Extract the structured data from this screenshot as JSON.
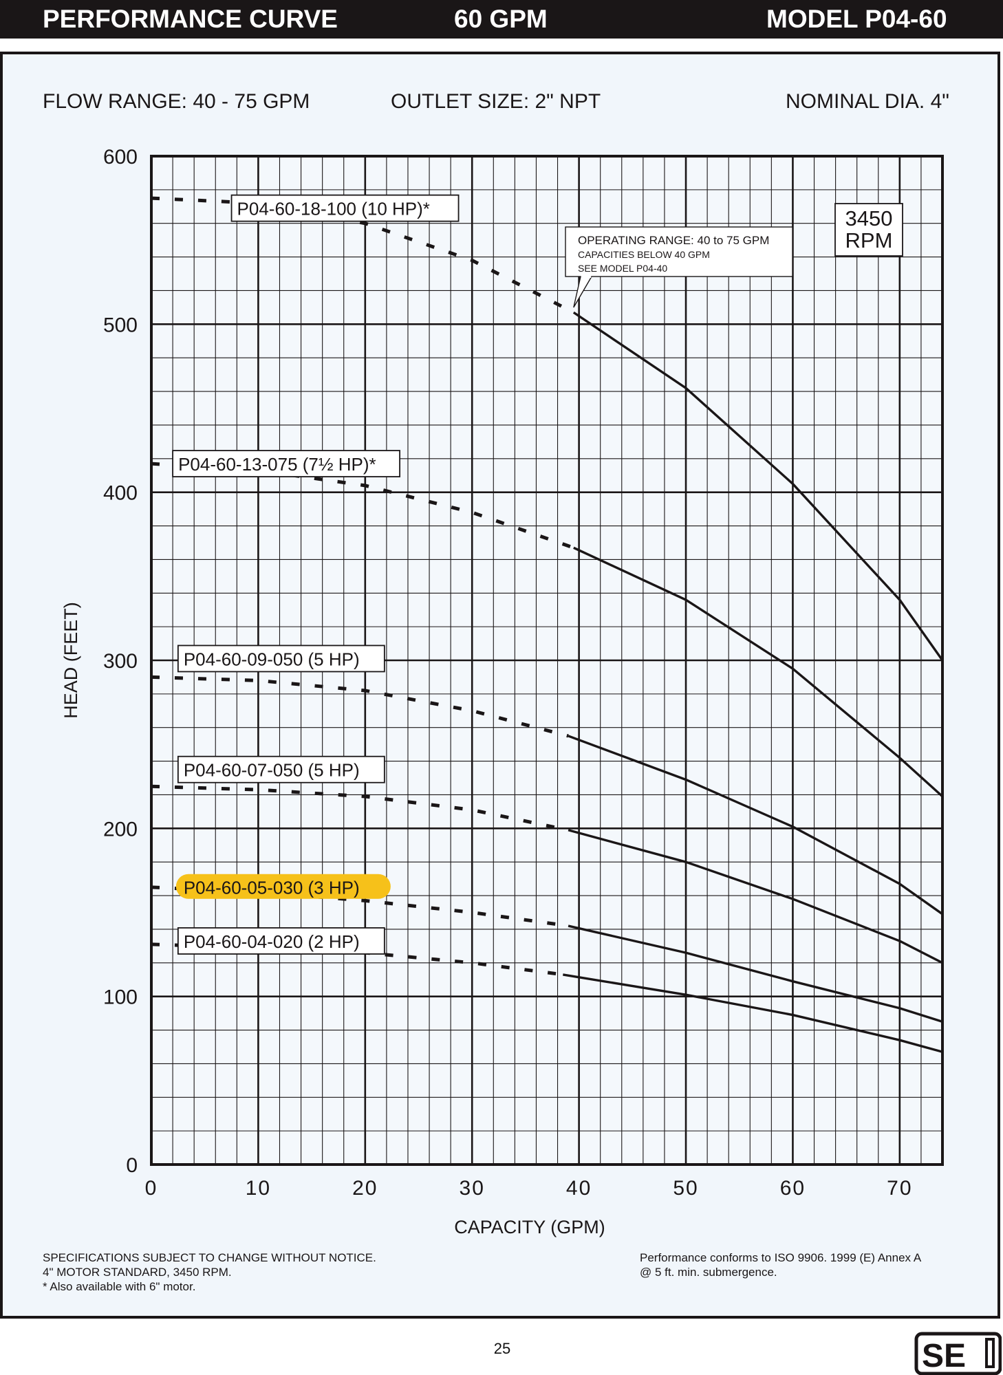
{
  "header": {
    "left": "PERFORMANCE CURVE",
    "center": "60 GPM",
    "right": "MODEL  P04-60"
  },
  "info": {
    "flow_range": "FLOW RANGE: 40 - 75 GPM",
    "outlet_size": "OUTLET SIZE: 2\" NPT",
    "nominal_dia": "NOMINAL DIA. 4\""
  },
  "footer": {
    "spec_lines": [
      "SPECIFICATIONS SUBJECT TO CHANGE WITHOUT NOTICE.",
      "4\" MOTOR STANDARD, 3450 RPM.",
      "* Also available with 6\" motor."
    ],
    "conform_lines": [
      "Performance conforms to ISO 9906. 1999 (E) Annex A",
      "@ 5 ft. min. submergence."
    ],
    "page_number": "25"
  },
  "logo": {
    "text": "SE"
  },
  "colors": {
    "highlight": "#f6c11a",
    "ink": "#1a1617",
    "panel": "#f1f6fb"
  },
  "chart_data": {
    "type": "line",
    "xlabel": "CAPACITY (GPM)",
    "ylabel": "HEAD (FEET)",
    "xlim": [
      0,
      74
    ],
    "ylim": [
      0,
      600
    ],
    "x_ticks": [
      0,
      10,
      20,
      30,
      40,
      50,
      60,
      70
    ],
    "y_ticks": [
      0,
      100,
      200,
      300,
      400,
      500,
      600
    ],
    "grid": true,
    "rpm_label": [
      "3450",
      "RPM"
    ],
    "annotation": {
      "lines": [
        "OPERATING RANGE: 40 to 75 GPM",
        "CAPACITIES BELOW 40 GPM",
        "SEE MODEL P04-40"
      ],
      "points_to": [
        39.5,
        510
      ]
    },
    "series": [
      {
        "name": "P04-60-18-100 (10 HP)*",
        "dashed": {
          "x": [
            0,
            10,
            20,
            30,
            39.5
          ],
          "y": [
            575,
            572,
            560,
            538,
            507
          ]
        },
        "solid": {
          "x": [
            39.5,
            50,
            60,
            70,
            74
          ],
          "y": [
            507,
            462,
            405,
            336,
            300
          ]
        }
      },
      {
        "name": "P04-60-13-075 (7½ HP)*",
        "dashed": {
          "x": [
            0,
            10,
            20,
            30,
            39.5
          ],
          "y": [
            417,
            413,
            404,
            388,
            367
          ]
        },
        "solid": {
          "x": [
            39.5,
            50,
            60,
            70,
            74
          ],
          "y": [
            367,
            336,
            295,
            242,
            219
          ]
        }
      },
      {
        "name": "P04-60-09-050 (5 HP)",
        "dashed": {
          "x": [
            0,
            10,
            20,
            30,
            39
          ],
          "y": [
            290,
            288,
            282,
            270,
            255
          ]
        },
        "solid": {
          "x": [
            39,
            50,
            60,
            70,
            74
          ],
          "y": [
            255,
            229,
            201,
            167,
            149
          ]
        }
      },
      {
        "name": "P04-60-07-050 (5 HP)",
        "dashed": {
          "x": [
            0,
            10,
            20,
            30,
            39
          ],
          "y": [
            225,
            223,
            219,
            211,
            199
          ]
        },
        "solid": {
          "x": [
            39,
            50,
            60,
            70,
            74
          ],
          "y": [
            199,
            180,
            158,
            133,
            120
          ]
        }
      },
      {
        "name": "P04-60-05-030 (3 HP)",
        "highlight": true,
        "dashed": {
          "x": [
            0,
            10,
            20,
            30,
            39
          ],
          "y": [
            165,
            162,
            157,
            150,
            142
          ]
        },
        "solid": {
          "x": [
            39,
            50,
            60,
            70,
            74
          ],
          "y": [
            142,
            126,
            109,
            93,
            85
          ]
        }
      },
      {
        "name": "P04-60-04-020 (2 HP)",
        "dashed": {
          "x": [
            0,
            10,
            20,
            30,
            38.5
          ],
          "y": [
            131,
            129,
            126,
            120,
            113
          ]
        },
        "solid": {
          "x": [
            38.5,
            50,
            60,
            70,
            74
          ],
          "y": [
            113,
            101,
            89,
            74,
            67
          ]
        }
      }
    ]
  }
}
